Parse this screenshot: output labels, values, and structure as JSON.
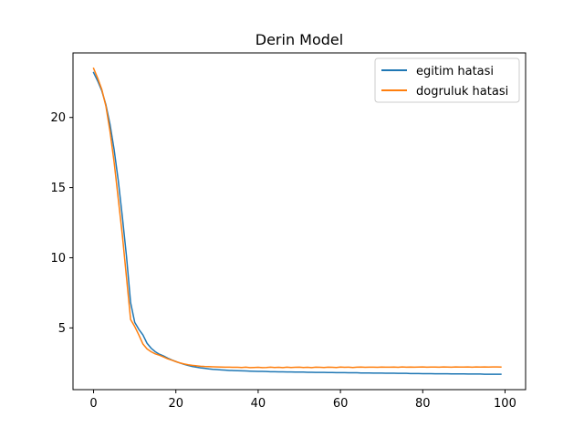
{
  "chart_data": {
    "type": "line",
    "title": "Derin Model",
    "xlabel": "",
    "ylabel": "",
    "xlim": [
      -5,
      105
    ],
    "ylim": [
      0.6,
      24.6
    ],
    "xticks": [
      0,
      20,
      40,
      60,
      80,
      100
    ],
    "yticks": [
      5,
      10,
      15,
      20
    ],
    "grid": false,
    "legend_position": "top-right",
    "series": [
      {
        "name": "egitim hatasi",
        "color": "#1f77b4",
        "x": [
          0,
          1,
          2,
          3,
          4,
          5,
          6,
          7,
          8,
          9,
          10,
          11,
          12,
          13,
          14,
          15,
          16,
          17,
          18,
          19,
          20,
          21,
          22,
          23,
          24,
          25,
          26,
          27,
          28,
          29,
          30,
          31,
          32,
          33,
          34,
          35,
          36,
          37,
          38,
          39,
          40,
          41,
          42,
          43,
          44,
          45,
          46,
          47,
          48,
          49,
          50,
          51,
          52,
          53,
          54,
          55,
          56,
          57,
          58,
          59,
          60,
          61,
          62,
          63,
          64,
          65,
          66,
          67,
          68,
          69,
          70,
          71,
          72,
          73,
          74,
          75,
          76,
          77,
          78,
          79,
          80,
          81,
          82,
          83,
          84,
          85,
          86,
          87,
          88,
          89,
          90,
          91,
          92,
          93,
          94,
          95,
          96,
          97,
          98,
          99
        ],
        "y": [
          23.2,
          22.6,
          21.9,
          20.9,
          19.5,
          17.7,
          15.5,
          12.9,
          10.1,
          6.8,
          5.4,
          4.9,
          4.5,
          3.9,
          3.55,
          3.3,
          3.12,
          3.0,
          2.85,
          2.72,
          2.6,
          2.5,
          2.4,
          2.32,
          2.25,
          2.2,
          2.15,
          2.12,
          2.08,
          2.05,
          2.03,
          2.01,
          1.99,
          1.97,
          1.96,
          1.95,
          1.94,
          1.93,
          1.92,
          1.91,
          1.9,
          1.9,
          1.89,
          1.88,
          1.88,
          1.87,
          1.87,
          1.86,
          1.86,
          1.85,
          1.85,
          1.85,
          1.84,
          1.84,
          1.83,
          1.83,
          1.83,
          1.82,
          1.82,
          1.81,
          1.81,
          1.81,
          1.8,
          1.8,
          1.8,
          1.79,
          1.79,
          1.79,
          1.78,
          1.78,
          1.78,
          1.77,
          1.77,
          1.77,
          1.76,
          1.76,
          1.76,
          1.75,
          1.75,
          1.75,
          1.74,
          1.74,
          1.74,
          1.73,
          1.73,
          1.73,
          1.73,
          1.72,
          1.72,
          1.72,
          1.72,
          1.71,
          1.71,
          1.71,
          1.71,
          1.7,
          1.7,
          1.7,
          1.7,
          1.7
        ]
      },
      {
        "name": "dogruluk hatasi",
        "color": "#ff7f0e",
        "x": [
          0,
          1,
          2,
          3,
          4,
          5,
          6,
          7,
          8,
          9,
          10,
          11,
          12,
          13,
          14,
          15,
          16,
          17,
          18,
          19,
          20,
          21,
          22,
          23,
          24,
          25,
          26,
          27,
          28,
          29,
          30,
          31,
          32,
          33,
          34,
          35,
          36,
          37,
          38,
          39,
          40,
          41,
          42,
          43,
          44,
          45,
          46,
          47,
          48,
          49,
          50,
          51,
          52,
          53,
          54,
          55,
          56,
          57,
          58,
          59,
          60,
          61,
          62,
          63,
          64,
          65,
          66,
          67,
          68,
          69,
          70,
          71,
          72,
          73,
          74,
          75,
          76,
          77,
          78,
          79,
          80,
          81,
          82,
          83,
          84,
          85,
          86,
          87,
          88,
          89,
          90,
          91,
          92,
          93,
          94,
          95,
          96,
          97,
          98,
          99
        ],
        "y": [
          23.5,
          22.8,
          22.0,
          20.8,
          19.0,
          16.8,
          14.2,
          11.6,
          8.6,
          5.6,
          5.1,
          4.5,
          3.85,
          3.5,
          3.3,
          3.15,
          3.05,
          2.93,
          2.8,
          2.7,
          2.6,
          2.5,
          2.43,
          2.37,
          2.33,
          2.3,
          2.27,
          2.25,
          2.24,
          2.23,
          2.22,
          2.21,
          2.2,
          2.2,
          2.19,
          2.19,
          2.18,
          2.2,
          2.17,
          2.18,
          2.19,
          2.17,
          2.18,
          2.2,
          2.18,
          2.19,
          2.17,
          2.2,
          2.18,
          2.19,
          2.2,
          2.18,
          2.19,
          2.17,
          2.2,
          2.19,
          2.18,
          2.2,
          2.19,
          2.18,
          2.21,
          2.19,
          2.2,
          2.18,
          2.2,
          2.21,
          2.19,
          2.2,
          2.2,
          2.19,
          2.21,
          2.2,
          2.2,
          2.21,
          2.19,
          2.22,
          2.2,
          2.21,
          2.2,
          2.21,
          2.22,
          2.2,
          2.21,
          2.21,
          2.2,
          2.22,
          2.21,
          2.2,
          2.22,
          2.21,
          2.21,
          2.22,
          2.2,
          2.22,
          2.21,
          2.22,
          2.21,
          2.22,
          2.22,
          2.21
        ]
      }
    ]
  }
}
